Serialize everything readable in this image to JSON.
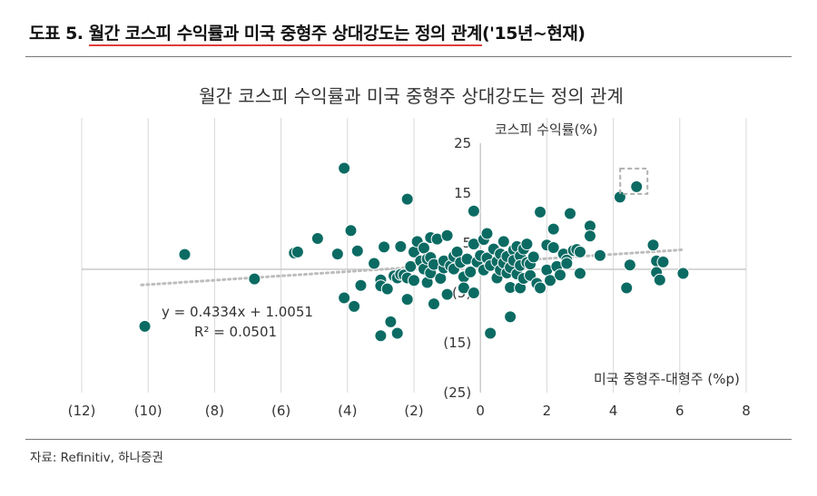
{
  "header": {
    "prefix": "도표 5. ",
    "highlight": "월간 코스피 수익률과 미국 중형주 상대강도는 정의 관계",
    "suffix": "('15년~현재)"
  },
  "source": "자료: Refinitiv, 하나증권",
  "chart_data": {
    "type": "scatter",
    "title": "월간 코스피 수익률과 미국 중형주 상대강도는 정의 관계",
    "xlabel": "미국 중형주-대형주 (%p)",
    "ylabel": "코스피 수익률(%)",
    "xlim": [
      -12,
      8
    ],
    "ylim": [
      -25,
      25
    ],
    "x_ticks": [
      -12,
      -10,
      -8,
      -6,
      -4,
      -2,
      0,
      2,
      4,
      6,
      8
    ],
    "x_tick_labels": [
      "(12)",
      "(10)",
      "(8)",
      "(6)",
      "(4)",
      "(2)",
      "0",
      "2",
      "4",
      "6",
      "8"
    ],
    "y_ticks": [
      25,
      15,
      5,
      -5,
      -15,
      -25
    ],
    "y_tick_labels": [
      "25",
      "15",
      "5",
      "(5)",
      "(15)",
      "(25)"
    ],
    "grid": "vertical",
    "marker_color": "#0b6b63",
    "trend_color": "#bdbdbd",
    "highlight_box_color": "#b0b0b0",
    "highlight_point": [
      4.7,
      16.3
    ],
    "trendline": {
      "slope": 0.4334,
      "intercept": 1.0051,
      "x_range": [
        -10.2,
        6.1
      ]
    },
    "equation": "y = 0.4334x + 1.0051",
    "r2": "R² = 0.0501",
    "points": [
      [
        -10.1,
        -11.7
      ],
      [
        -8.9,
        2.7
      ],
      [
        -6.8,
        -2.2
      ],
      [
        -5.6,
        3.0
      ],
      [
        -5.5,
        3.2
      ],
      [
        -4.9,
        5.9
      ],
      [
        -4.3,
        2.8
      ],
      [
        -4.1,
        20.0
      ],
      [
        -4.1,
        -6.0
      ],
      [
        -3.9,
        7.5
      ],
      [
        -3.8,
        -7.7
      ],
      [
        -3.7,
        3.4
      ],
      [
        -3.6,
        -3.5
      ],
      [
        -3.2,
        0.9
      ],
      [
        -3.0,
        -2.4
      ],
      [
        -3.0,
        -3.6
      ],
      [
        -3.0,
        -13.6
      ],
      [
        -2.9,
        4.2
      ],
      [
        -2.8,
        -4.2
      ],
      [
        -2.7,
        -10.8
      ],
      [
        -2.6,
        -1.6
      ],
      [
        -2.5,
        -13.1
      ],
      [
        -2.5,
        -2.0
      ],
      [
        -2.4,
        4.3
      ],
      [
        -2.4,
        -1.3
      ],
      [
        -2.3,
        -1.4
      ],
      [
        -2.2,
        -2.0
      ],
      [
        -2.2,
        -6.3
      ],
      [
        -2.2,
        13.8
      ],
      [
        -2.1,
        0.3
      ],
      [
        -2.0,
        -2.5
      ],
      [
        -2.0,
        3.2
      ],
      [
        -1.9,
        5.3
      ],
      [
        -1.8,
        1.4
      ],
      [
        -1.7,
        -0.2
      ],
      [
        -1.7,
        4.0
      ],
      [
        -1.6,
        -2.9
      ],
      [
        -1.6,
        1.8
      ],
      [
        -1.5,
        2.1
      ],
      [
        -1.5,
        6.1
      ],
      [
        -1.5,
        -1.0
      ],
      [
        -1.4,
        0.7
      ],
      [
        -1.4,
        -7.2
      ],
      [
        -1.3,
        5.8
      ],
      [
        -1.2,
        -2.1
      ],
      [
        -1.1,
        0.0
      ],
      [
        -1.1,
        1.4
      ],
      [
        -1.0,
        6.5
      ],
      [
        -1.0,
        -5.3
      ],
      [
        -0.9,
        0.4
      ],
      [
        -0.8,
        -0.2
      ],
      [
        -0.8,
        2.3
      ],
      [
        -0.7,
        3.2
      ],
      [
        -0.6,
        1.1
      ],
      [
        -0.5,
        -1.8
      ],
      [
        -0.5,
        -4.0
      ],
      [
        -0.4,
        1.8
      ],
      [
        -0.3,
        -0.8
      ],
      [
        -0.2,
        4.8
      ],
      [
        -0.2,
        11.4
      ],
      [
        -0.2,
        -5.0
      ],
      [
        -0.1,
        1.2
      ],
      [
        0.0,
        2.5
      ],
      [
        0.1,
        5.7
      ],
      [
        0.1,
        -0.4
      ],
      [
        0.2,
        6.9
      ],
      [
        0.2,
        2.0
      ],
      [
        0.3,
        0.5
      ],
      [
        0.3,
        -13.1
      ],
      [
        0.4,
        3.8
      ],
      [
        0.5,
        1.3
      ],
      [
        0.5,
        -2.0
      ],
      [
        0.6,
        2.8
      ],
      [
        0.6,
        -0.4
      ],
      [
        0.7,
        5.3
      ],
      [
        0.7,
        1.0
      ],
      [
        0.8,
        2.3
      ],
      [
        0.8,
        -1.0
      ],
      [
        0.9,
        -3.9
      ],
      [
        0.9,
        0.1
      ],
      [
        0.9,
        -9.8
      ],
      [
        1.0,
        3.6
      ],
      [
        1.0,
        1.5
      ],
      [
        1.1,
        -1.2
      ],
      [
        1.1,
        4.3
      ],
      [
        1.2,
        2.4
      ],
      [
        1.2,
        0.5
      ],
      [
        1.2,
        -4.0
      ],
      [
        1.3,
        3.8
      ],
      [
        1.3,
        -2.1
      ],
      [
        1.4,
        1.1
      ],
      [
        1.4,
        4.8
      ],
      [
        1.5,
        -1.5
      ],
      [
        1.5,
        0.8
      ],
      [
        1.6,
        2.2
      ],
      [
        1.7,
        -3.1
      ],
      [
        1.8,
        11.2
      ],
      [
        1.8,
        -4.0
      ],
      [
        2.0,
        -0.4
      ],
      [
        2.0,
        4.6
      ],
      [
        2.1,
        -2.5
      ],
      [
        2.2,
        7.8
      ],
      [
        2.2,
        4.1
      ],
      [
        2.3,
        0.3
      ],
      [
        2.4,
        -1.4
      ],
      [
        2.5,
        2.8
      ],
      [
        2.6,
        1.6
      ],
      [
        2.6,
        0.9
      ],
      [
        2.7,
        10.9
      ],
      [
        2.8,
        3.5
      ],
      [
        2.9,
        3.7
      ],
      [
        3.0,
        3.2
      ],
      [
        3.0,
        -1.1
      ],
      [
        3.3,
        8.4
      ],
      [
        3.3,
        6.4
      ],
      [
        3.6,
        2.5
      ],
      [
        4.2,
        14.2
      ],
      [
        4.4,
        -4.0
      ],
      [
        4.5,
        0.6
      ],
      [
        4.7,
        16.3
      ],
      [
        5.2,
        4.6
      ],
      [
        5.3,
        1.4
      ],
      [
        5.3,
        -0.9
      ],
      [
        5.4,
        -2.4
      ],
      [
        5.5,
        1.2
      ],
      [
        6.1,
        -1.1
      ]
    ]
  }
}
